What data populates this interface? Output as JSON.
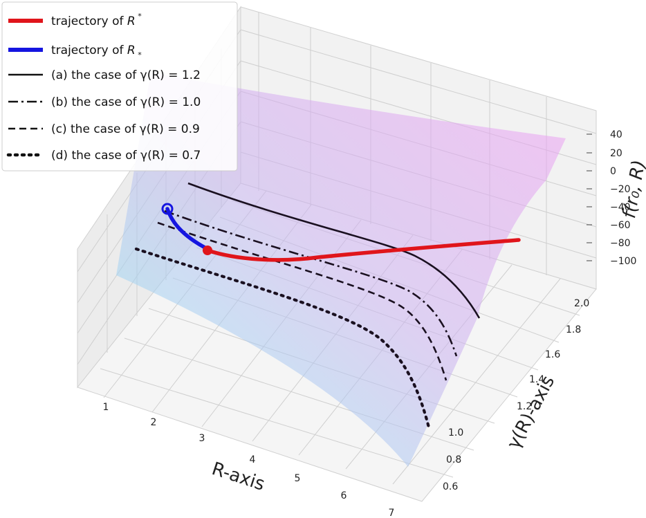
{
  "chart_data": {
    "type": "surface3d",
    "axes": {
      "x": {
        "label": "R-axis",
        "ticks": [
          "1",
          "2",
          "3",
          "4",
          "5",
          "6",
          "7"
        ],
        "range": [
          1,
          7
        ]
      },
      "y": {
        "label": "γ(R)-axis",
        "ticks": [
          "0.6",
          "0.8",
          "1.0",
          "1.2",
          "1.4",
          "1.6",
          "1.8",
          "2.0"
        ],
        "range": [
          0.6,
          2.0
        ]
      },
      "z": {
        "label": "f(r₀, R)",
        "ticks": [
          "40",
          "20",
          "0",
          "−20",
          "−40",
          "−60",
          "−80",
          "−100"
        ],
        "range": [
          -100,
          40
        ]
      }
    },
    "surface": {
      "colormap": "cool (cyan to magenta)",
      "alpha": 0.35
    },
    "legend": {
      "placement": "top-left",
      "entries": [
        {
          "label_prefix": "trajectory of ",
          "label_math": "R",
          "label_script": "*",
          "script_pos": "sup",
          "style": "solid-thick",
          "color": "#e0151b"
        },
        {
          "label_prefix": "trajectory of ",
          "label_math": "R",
          "label_script": "*",
          "script_pos": "sub",
          "style": "solid-thick",
          "color": "#1515e0"
        },
        {
          "label": "(a) the case of γ(R) = 1.2",
          "style": "solid",
          "color": "#111111"
        },
        {
          "label": "(b) the case of γ(R) = 1.0",
          "style": "dashdot",
          "color": "#111111"
        },
        {
          "label": "(c) the case of γ(R) = 0.9",
          "style": "dashed",
          "color": "#111111"
        },
        {
          "label": "(d) the case of γ(R) = 0.7",
          "style": "dotted",
          "color": "#111111"
        }
      ]
    },
    "series": [
      {
        "gamma": 1.2,
        "style": "solid",
        "color": "#1a1020"
      },
      {
        "gamma": 1.0,
        "style": "dashdot",
        "color": "#1a1020"
      },
      {
        "gamma": 0.9,
        "style": "dashed",
        "color": "#1a1020"
      },
      {
        "gamma": 0.7,
        "style": "dotted",
        "color": "#1a1020"
      }
    ],
    "trajectories": [
      {
        "name": "trajectory of R^*",
        "color": "#e0151b"
      },
      {
        "name": "trajectory of R_*",
        "color": "#1515e0"
      }
    ],
    "grid": true
  }
}
